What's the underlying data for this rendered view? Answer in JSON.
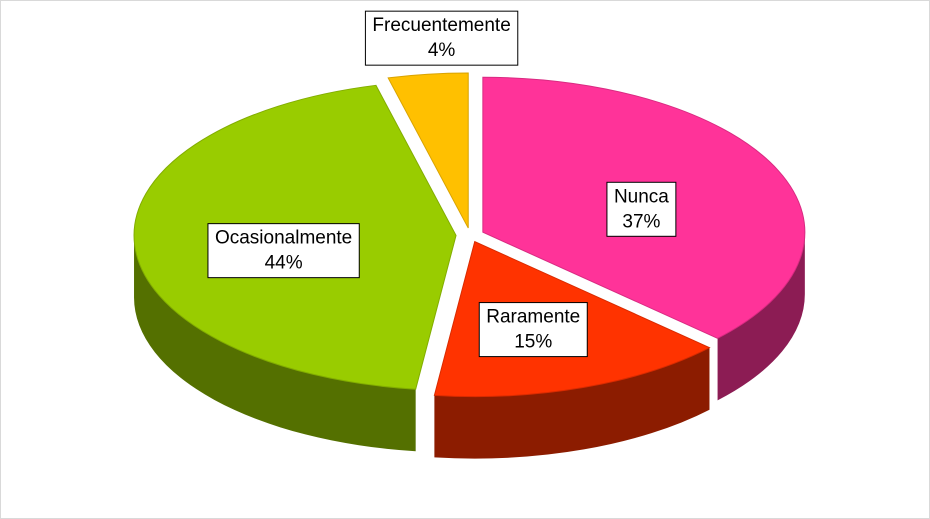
{
  "chart_data": {
    "type": "pie",
    "categories": [
      "Nunca",
      "Raramente",
      "Ocasionalmente",
      "Frecuentemente"
    ],
    "values": [
      37,
      15,
      44,
      4
    ],
    "value_labels": [
      "37%",
      "15%",
      "44%",
      "4%"
    ],
    "colors": [
      "#ff3399",
      "#ff3300",
      "#99cc00",
      "#ffc000"
    ]
  }
}
